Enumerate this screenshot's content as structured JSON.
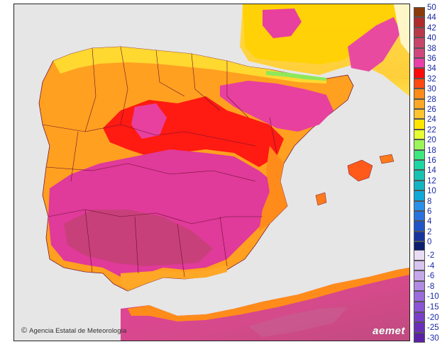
{
  "map": {
    "credit": "Agencia Estatal de Meteorología",
    "credit_symbol": "©",
    "logo": "aemet",
    "land_gray": "#e9e9e9",
    "sea_gray": "#e6e6e6"
  },
  "legend": {
    "warm": [
      {
        "label": "50",
        "color": "#8b3b0a"
      },
      {
        "label": "44",
        "color": "#b02b2b"
      },
      {
        "label": "42",
        "color": "#b83a4a"
      },
      {
        "label": "40",
        "color": "#c8456a"
      },
      {
        "label": "38",
        "color": "#d0477e"
      },
      {
        "label": "36",
        "color": "#e83fa8"
      },
      {
        "label": "34",
        "color": "#ff0a0a"
      },
      {
        "label": "32",
        "color": "#ff4a12"
      },
      {
        "label": "30",
        "color": "#ff8c1a"
      },
      {
        "label": "28",
        "color": "#ffa726"
      },
      {
        "label": "26",
        "color": "#ffc42e"
      },
      {
        "label": "24",
        "color": "#ffe600"
      },
      {
        "label": "22",
        "color": "#e6ff33"
      },
      {
        "label": "20",
        "color": "#9cf55a"
      },
      {
        "label": "18",
        "color": "#3de87e"
      },
      {
        "label": "16",
        "color": "#1dd6a5"
      },
      {
        "label": "14",
        "color": "#18c2b2"
      },
      {
        "label": "12",
        "color": "#14b5c2"
      },
      {
        "label": "10",
        "color": "#10a8d6"
      },
      {
        "label": "8",
        "color": "#2a8fe8"
      },
      {
        "label": "6",
        "color": "#2a72e0"
      },
      {
        "label": "4",
        "color": "#1f55c8"
      },
      {
        "label": "2",
        "color": "#17349e"
      },
      {
        "label": "0",
        "color": "#0c1f6e"
      }
    ],
    "cold": [
      {
        "label": "-2",
        "color": "#eadcf5"
      },
      {
        "label": "-4",
        "color": "#d8c4f0"
      },
      {
        "label": "-6",
        "color": "#c4a8ea"
      },
      {
        "label": "-8",
        "color": "#b08ae3"
      },
      {
        "label": "-10",
        "color": "#9a6cdc"
      },
      {
        "label": "-15",
        "color": "#8a55d4"
      },
      {
        "label": "-20",
        "color": "#7a3fc8"
      },
      {
        "label": "-25",
        "color": "#6a2fb8"
      },
      {
        "label": "-30",
        "color": "#5a22a2"
      }
    ]
  }
}
